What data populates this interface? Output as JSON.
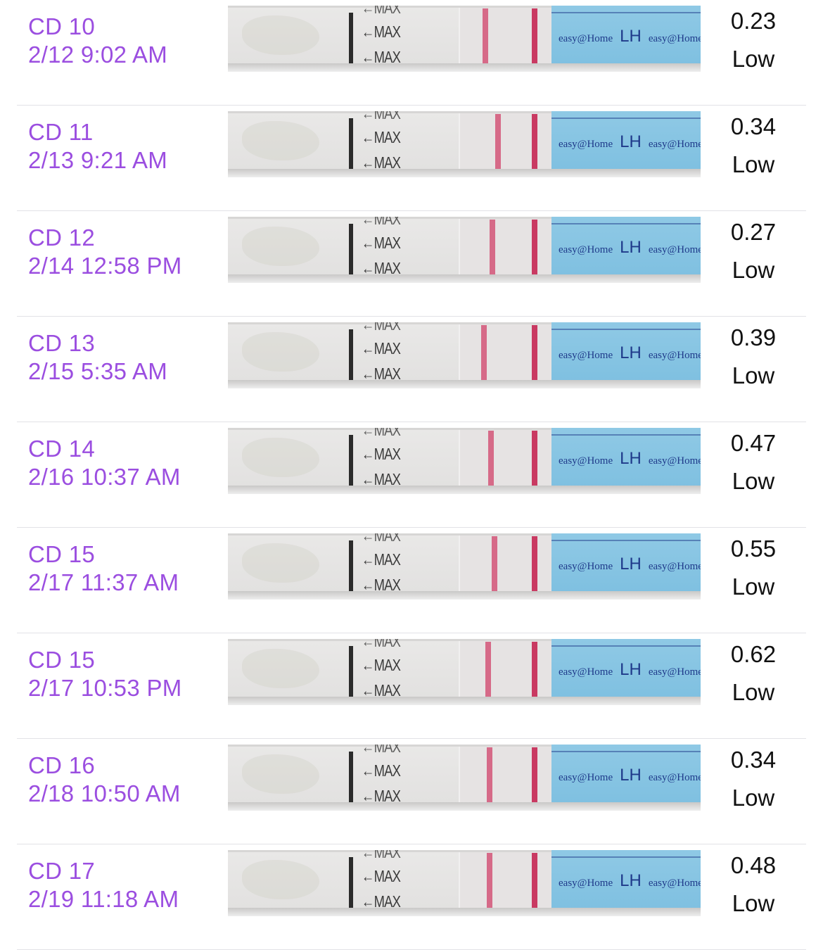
{
  "brand_text": "easy@Home",
  "lh_text": "LH",
  "max_label": "←MAX",
  "colors": {
    "label": "#9b4ee0",
    "test_line": "#d66a88",
    "control_line": "#c93a62",
    "strip_blue": "#8fc9e5"
  },
  "entries": [
    {
      "cd": "CD 10",
      "datetime": "2/12 9:02 AM",
      "value": "0.23",
      "status": "Low"
    },
    {
      "cd": "CD 11",
      "datetime": "2/13 9:21 AM",
      "value": "0.34",
      "status": "Low"
    },
    {
      "cd": "CD 12",
      "datetime": "2/14 12:58 PM",
      "value": "0.27",
      "status": "Low"
    },
    {
      "cd": "CD 13",
      "datetime": "2/15 5:35 AM",
      "value": "0.39",
      "status": "Low"
    },
    {
      "cd": "CD 14",
      "datetime": "2/16 10:37 AM",
      "value": "0.47",
      "status": "Low"
    },
    {
      "cd": "CD 15",
      "datetime": "2/17 11:37 AM",
      "value": "0.55",
      "status": "Low"
    },
    {
      "cd": "CD 15",
      "datetime": "2/17 10:53 PM",
      "value": "0.62",
      "status": "Low"
    },
    {
      "cd": "CD 16",
      "datetime": "2/18 10:50 AM",
      "value": "0.34",
      "status": "Low"
    },
    {
      "cd": "CD 17",
      "datetime": "2/19 11:18 AM",
      "value": "0.48",
      "status": "Low"
    }
  ]
}
